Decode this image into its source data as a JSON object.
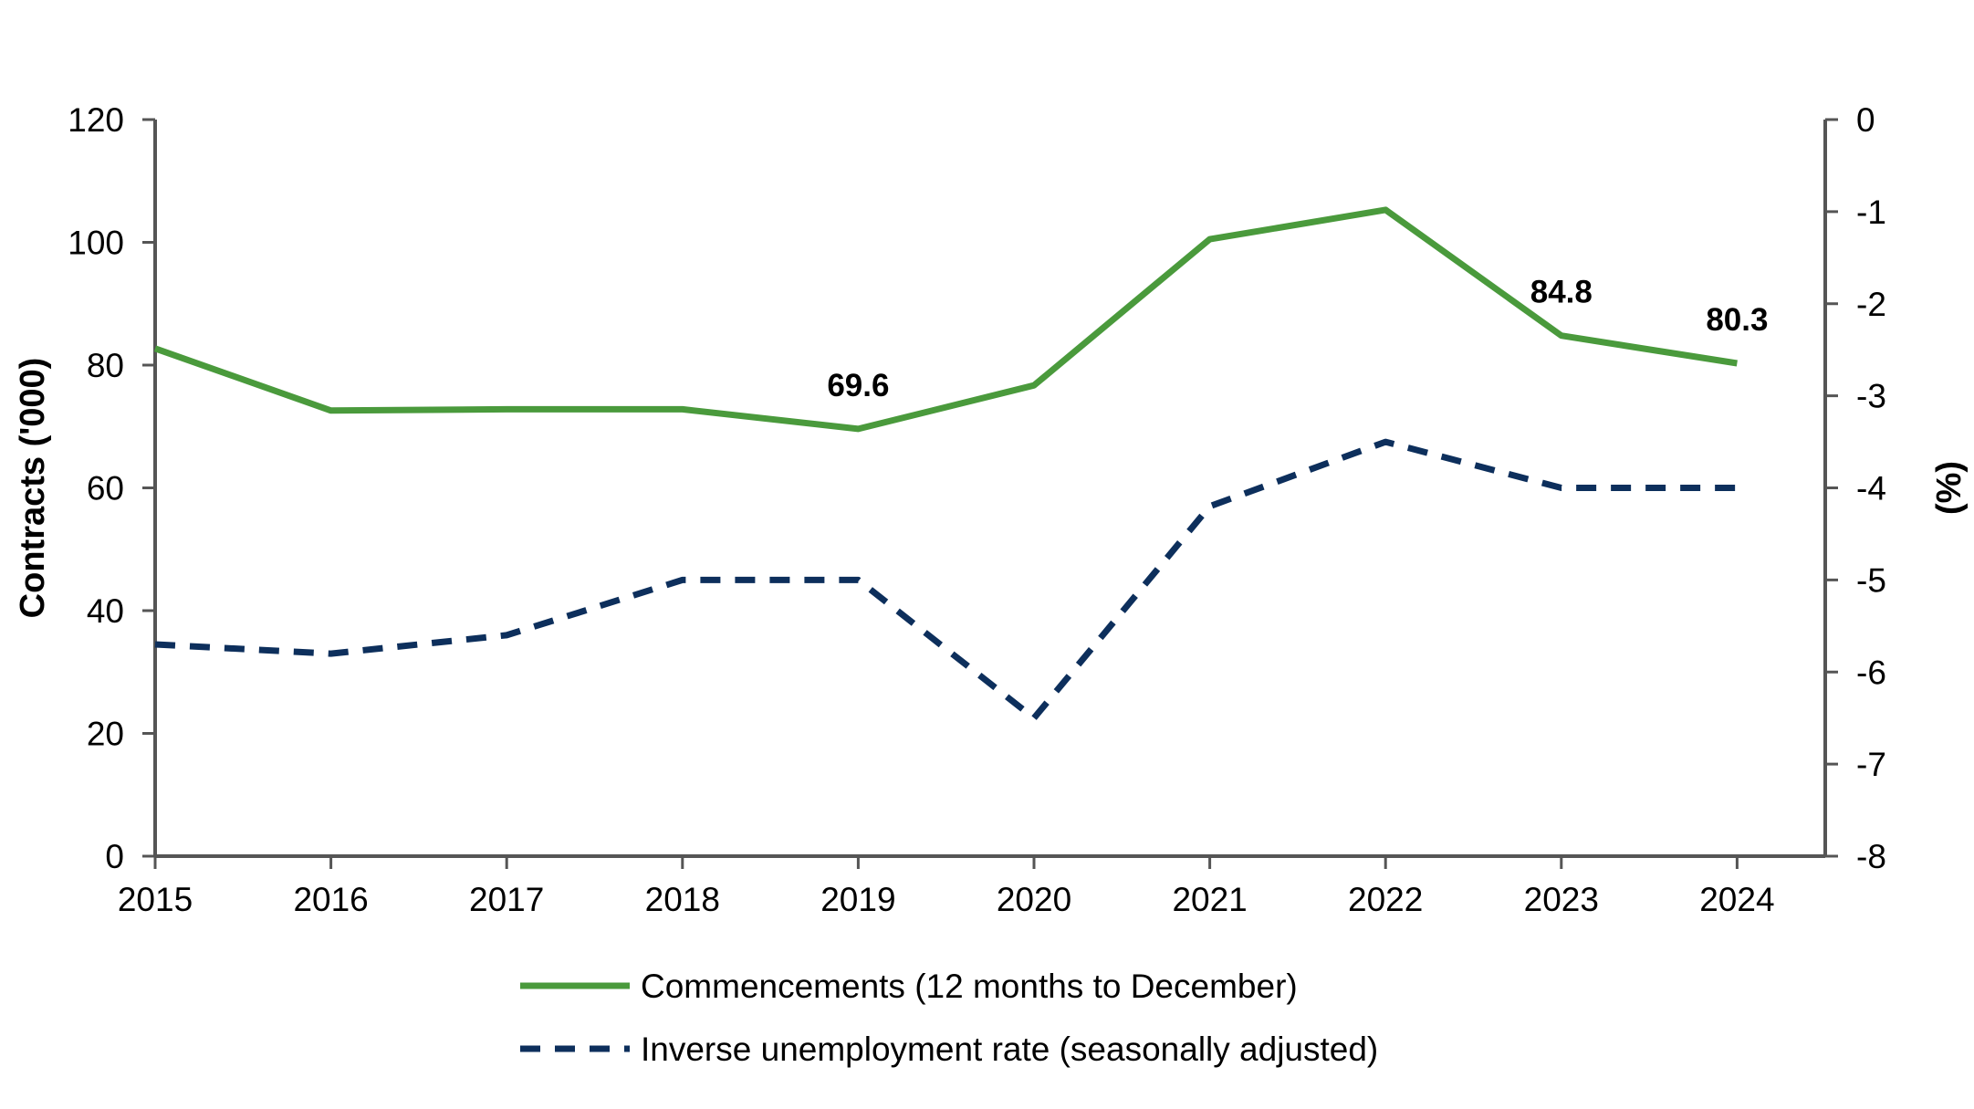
{
  "chart_data": {
    "type": "line",
    "categories": [
      "2015",
      "2016",
      "2017",
      "2018",
      "2019",
      "2020",
      "2021",
      "2022",
      "2023",
      "2024"
    ],
    "series": [
      {
        "name": "Commencements (12 months to December)",
        "axis": "left",
        "color": "#4a9a3c",
        "style": "solid",
        "values": [
          82.7,
          72.6,
          72.8,
          72.8,
          69.6,
          76.7,
          100.5,
          105.3,
          84.8,
          80.3
        ]
      },
      {
        "name": "Inverse unemployment rate (seasonally adjusted)",
        "axis": "right",
        "color": "#0d2f5c",
        "style": "dashed",
        "values": [
          -5.7,
          -5.8,
          -5.6,
          -5.0,
          -5.0,
          -6.5,
          -4.2,
          -3.5,
          -4.0,
          -4.0
        ]
      }
    ],
    "data_labels": [
      {
        "series": 0,
        "index": 4,
        "text": "69.6"
      },
      {
        "series": 0,
        "index": 8,
        "text": "84.8"
      },
      {
        "series": 0,
        "index": 9,
        "text": "80.3"
      }
    ],
    "left_axis": {
      "label": "Contracts ('000)",
      "ylim": [
        0,
        120
      ],
      "ticks": [
        "0",
        "20",
        "40",
        "60",
        "80",
        "100",
        "120"
      ]
    },
    "right_axis": {
      "label": "(%)",
      "ylim": [
        -8,
        0
      ],
      "ticks": [
        "-8",
        "-7",
        "-6",
        "-5",
        "-4",
        "-3",
        "-2",
        "-1",
        "0"
      ]
    },
    "grid": false,
    "legend_position": "bottom-center"
  }
}
